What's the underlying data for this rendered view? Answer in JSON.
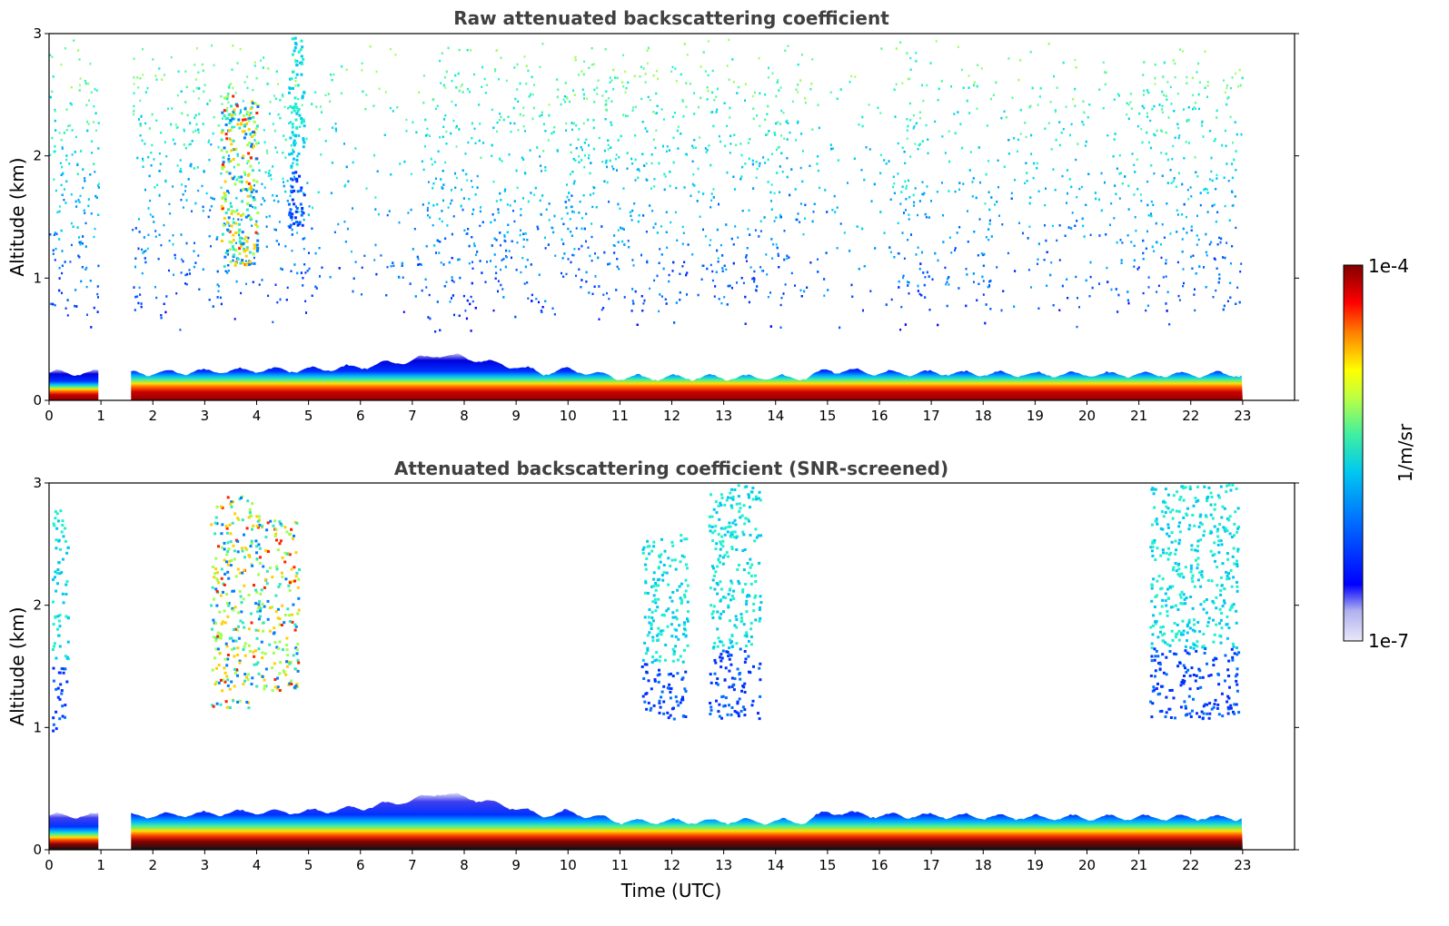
{
  "chart_data": [
    {
      "type": "heatmap",
      "title": "Raw attenuated backscattering coefficient",
      "xlabel": "",
      "ylabel": "Altitude (km)",
      "xlim": [
        0,
        24
      ],
      "ylim": [
        0,
        3
      ],
      "xticks": [
        "0",
        "1",
        "2",
        "3",
        "4",
        "5",
        "6",
        "7",
        "8",
        "9",
        "10",
        "11",
        "12",
        "13",
        "14",
        "15",
        "16",
        "17",
        "18",
        "19",
        "20",
        "21",
        "22",
        "23"
      ],
      "yticks": [
        "0",
        "1",
        "2",
        "3"
      ],
      "data_end_hour": 23,
      "gaps_hours": [
        [
          0.95,
          1.58
        ]
      ],
      "boundary_layer_top_km": [
        [
          0,
          0.18
        ],
        [
          2,
          0.18
        ],
        [
          4,
          0.2
        ],
        [
          5,
          0.2
        ],
        [
          6,
          0.22
        ],
        [
          7,
          0.26
        ],
        [
          7.5,
          0.3
        ],
        [
          8,
          0.28
        ],
        [
          9,
          0.22
        ],
        [
          9.5,
          0.18
        ],
        [
          10,
          0.2
        ],
        [
          11,
          0.15
        ],
        [
          14.6,
          0.15
        ],
        [
          15,
          0.2
        ],
        [
          16,
          0.18
        ],
        [
          17,
          0.18
        ],
        [
          19,
          0.17
        ],
        [
          20,
          0.17
        ],
        [
          23,
          0.17
        ]
      ],
      "cloud_events": [
        {
          "t_start": 3.3,
          "t_end": 4.0,
          "z_bottom_km": 1.1,
          "z_top_km": 2.5,
          "level": "high"
        },
        {
          "t_start": 4.6,
          "t_end": 4.9,
          "z_bottom_km": 1.4,
          "z_top_km": 3.0,
          "level": "medium"
        }
      ],
      "noise_floor_km": 1.0
    },
    {
      "type": "heatmap",
      "title": "Attenuated backscattering coefficient (SNR-screened)",
      "xlabel": "Time (UTC)",
      "ylabel": "Altitude (km)",
      "xlim": [
        0,
        24
      ],
      "ylim": [
        0,
        3
      ],
      "xticks": [
        "0",
        "1",
        "2",
        "3",
        "4",
        "5",
        "6",
        "7",
        "8",
        "9",
        "10",
        "11",
        "12",
        "13",
        "14",
        "15",
        "16",
        "17",
        "18",
        "19",
        "20",
        "21",
        "22",
        "23"
      ],
      "yticks": [
        "0",
        "1",
        "2",
        "3"
      ],
      "data_end_hour": 23,
      "gaps_hours": [
        [
          0.95,
          1.58
        ]
      ],
      "cloud_events": [
        {
          "t_start": 0.05,
          "t_end": 0.35,
          "z_bottom_km": 0.95,
          "z_top_km": 2.8
        },
        {
          "t_start": 3.1,
          "t_end": 3.9,
          "z_bottom_km": 1.15,
          "z_top_km": 2.9
        },
        {
          "t_start": 3.9,
          "t_end": 4.8,
          "z_bottom_km": 1.3,
          "z_top_km": 2.75
        },
        {
          "t_start": 11.4,
          "t_end": 12.3,
          "z_bottom_km": 1.08,
          "z_top_km": 2.6
        },
        {
          "t_start": 12.7,
          "t_end": 13.7,
          "z_bottom_km": 1.08,
          "z_top_km": 3.0
        },
        {
          "t_start": 21.2,
          "t_end": 22.9,
          "z_bottom_km": 1.08,
          "z_top_km": 3.0
        }
      ]
    }
  ],
  "colorbar": {
    "label": "1/m/sr",
    "max_label": "1e-4",
    "min_label": "1e-7",
    "colormap": [
      "#e8e8f8",
      "#b8b8f0",
      "#0000ff",
      "#0066ff",
      "#00bbff",
      "#00e8c8",
      "#80ff80",
      "#ffff00",
      "#ff8000",
      "#ff0000",
      "#800000"
    ]
  }
}
